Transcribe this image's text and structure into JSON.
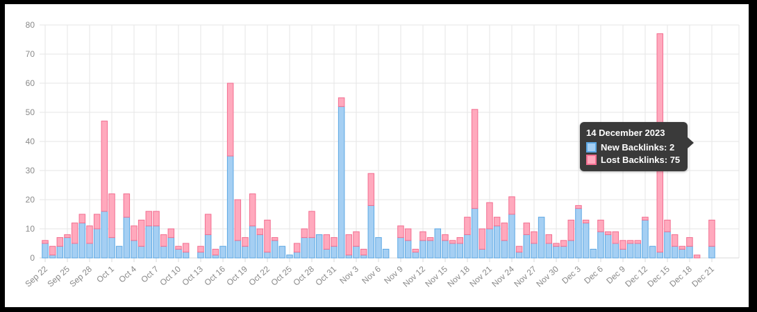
{
  "frame": {
    "border_color": "#000000",
    "panel_background": "#ffffff"
  },
  "axis": {
    "text_color": "#898989",
    "grid_color": "#e6e6e6",
    "tick_color": "#d8d8d8"
  },
  "tooltip": {
    "title": "14 December 2023",
    "target_date": "Dec 14",
    "background": "#3a3a3a",
    "rows": [
      {
        "label": "New Backlinks",
        "value": 2,
        "text": "New Backlinks: 2"
      },
      {
        "label": "Lost Backlinks",
        "value": 75,
        "text": "Lost Backlinks: 75"
      }
    ]
  },
  "chart_data": {
    "type": "bar",
    "stacked": true,
    "title": "",
    "xlabel": "",
    "ylabel": "",
    "ylim": [
      0,
      80
    ],
    "y_ticks": [
      0,
      10,
      20,
      30,
      40,
      50,
      60,
      70,
      80
    ],
    "grid": true,
    "legend_position": "none",
    "x_tick_every": 3,
    "x": [
      "Sep 22",
      "Sep 23",
      "Sep 24",
      "Sep 25",
      "Sep 26",
      "Sep 27",
      "Sep 28",
      "Sep 29",
      "Sep 30",
      "Oct 1",
      "Oct 2",
      "Oct 3",
      "Oct 4",
      "Oct 5",
      "Oct 6",
      "Oct 7",
      "Oct 8",
      "Oct 9",
      "Oct 10",
      "Oct 11",
      "Oct 12",
      "Oct 13",
      "Oct 14",
      "Oct 15",
      "Oct 16",
      "Oct 17",
      "Oct 18",
      "Oct 19",
      "Oct 20",
      "Oct 21",
      "Oct 22",
      "Oct 23",
      "Oct 24",
      "Oct 25",
      "Oct 26",
      "Oct 27",
      "Oct 28",
      "Oct 29",
      "Oct 30",
      "Oct 31",
      "Nov 1",
      "Nov 2",
      "Nov 3",
      "Nov 4",
      "Nov 5",
      "Nov 6",
      "Nov 7",
      "Nov 8",
      "Nov 9",
      "Nov 10",
      "Nov 11",
      "Nov 12",
      "Nov 13",
      "Nov 14",
      "Nov 15",
      "Nov 16",
      "Nov 17",
      "Nov 18",
      "Nov 19",
      "Nov 20",
      "Nov 21",
      "Nov 22",
      "Nov 23",
      "Nov 24",
      "Nov 25",
      "Nov 26",
      "Nov 27",
      "Nov 28",
      "Nov 29",
      "Nov 30",
      "Dec 1",
      "Dec 2",
      "Dec 3",
      "Dec 4",
      "Dec 5",
      "Dec 6",
      "Dec 7",
      "Dec 8",
      "Dec 9",
      "Dec 10",
      "Dec 11",
      "Dec 12",
      "Dec 13",
      "Dec 14",
      "Dec 15",
      "Dec 16",
      "Dec 17",
      "Dec 18",
      "Dec 19",
      "Dec 20",
      "Dec 21"
    ],
    "series": [
      {
        "name": "New Backlinks",
        "fill": "#a5cff3",
        "border": "#5ba7e3",
        "values": [
          5,
          1,
          4,
          7,
          5,
          12,
          5,
          10,
          16,
          7,
          4,
          14,
          6,
          4,
          11,
          11,
          4,
          7,
          3,
          2,
          0,
          2,
          8,
          1,
          4,
          35,
          6,
          4,
          11,
          8,
          2,
          6,
          4,
          1,
          2,
          7,
          7,
          8,
          3,
          4,
          52,
          1,
          4,
          1,
          18,
          7,
          3,
          0,
          7,
          6,
          2,
          6,
          6,
          10,
          6,
          5,
          5,
          8,
          17,
          3,
          10,
          11,
          6,
          15,
          2,
          8,
          5,
          14,
          5,
          4,
          4,
          6,
          17,
          12,
          3,
          9,
          8,
          5,
          3,
          5,
          5,
          13,
          4,
          2,
          9,
          4,
          3,
          4,
          0,
          0,
          4
        ]
      },
      {
        "name": "Lost Backlinks",
        "fill": "#ffa9bd",
        "border": "#f26e90",
        "values": [
          1,
          3,
          3,
          1,
          7,
          3,
          6,
          5,
          31,
          15,
          0,
          8,
          5,
          9,
          5,
          5,
          4,
          3,
          1,
          3,
          0,
          2,
          7,
          2,
          0,
          25,
          14,
          3,
          11,
          2,
          11,
          1,
          0,
          0,
          3,
          3,
          9,
          0,
          5,
          3,
          3,
          7,
          5,
          2,
          11,
          0,
          0,
          0,
          4,
          4,
          1,
          3,
          1,
          0,
          2,
          1,
          2,
          6,
          34,
          7,
          9,
          3,
          6,
          6,
          2,
          4,
          4,
          0,
          3,
          1,
          2,
          7,
          1,
          1,
          0,
          4,
          1,
          4,
          3,
          1,
          1,
          1,
          0,
          75,
          4,
          4,
          1,
          3,
          1,
          0,
          9
        ]
      }
    ]
  }
}
